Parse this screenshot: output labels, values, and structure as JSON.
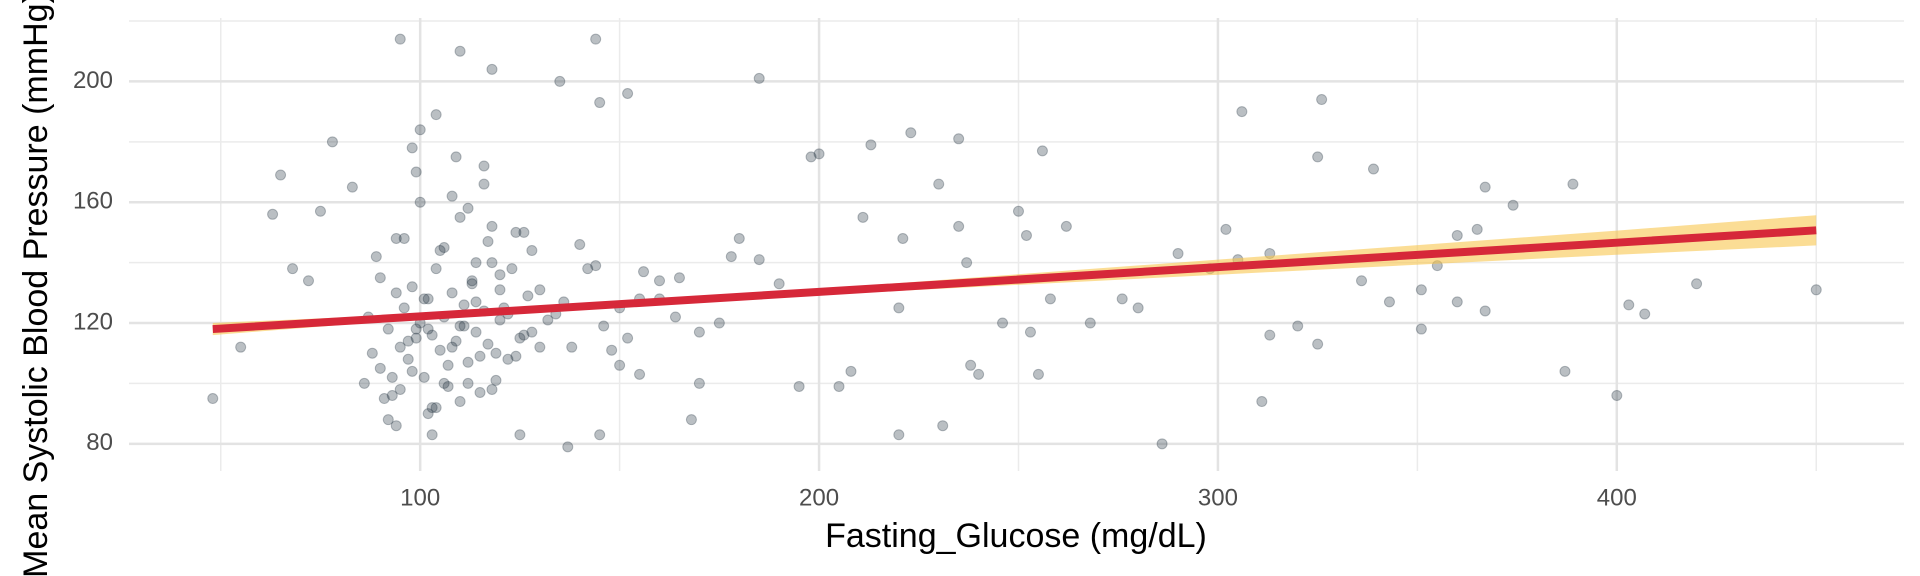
{
  "chart_data": {
    "type": "scatter",
    "x_label": "Fasting_Glucose (mg/dL)",
    "y_label": "Mean Systolic Blood Pressure (mmHg)",
    "xlim": [
      27,
      472
    ],
    "ylim": [
      71,
      221
    ],
    "xticks": [
      100,
      200,
      300,
      400
    ],
    "yticks": [
      80,
      120,
      160,
      200
    ],
    "minor_xticks": [
      50,
      150,
      250,
      350,
      450
    ],
    "minor_yticks": [
      100,
      140,
      180,
      220
    ],
    "grid": true,
    "series": [
      {
        "color": "#1b2a38",
        "opacity": 0.3,
        "x": [
          48,
          55,
          63,
          65,
          68,
          72,
          75,
          78,
          83,
          95,
          110,
          118,
          135,
          144,
          145,
          152,
          185,
          137,
          145,
          103,
          125,
          286,
          311,
          400,
          387,
          403,
          407,
          420,
          450,
          389,
          367,
          374,
          365,
          360,
          355,
          351,
          351,
          367,
          360,
          343,
          339,
          336,
          325,
          326,
          306,
          302,
          305,
          313,
          313,
          320,
          325,
          298,
          290,
          280,
          276,
          268,
          262,
          256,
          250,
          252,
          253,
          255,
          258,
          246,
          240,
          238,
          237,
          235,
          235,
          230,
          231,
          223,
          221,
          220,
          220,
          213,
          211,
          208,
          205,
          200,
          198,
          195,
          190,
          185,
          180,
          175,
          170,
          168,
          165,
          160,
          155,
          150,
          88,
          90,
          92,
          93,
          95,
          96,
          97,
          98,
          99,
          100,
          101,
          102,
          103,
          104,
          105,
          106,
          107,
          108,
          109,
          110,
          111,
          112,
          113,
          114,
          115,
          116,
          117,
          118,
          119,
          120,
          89,
          91,
          94,
          96,
          98,
          100,
          102,
          104,
          106,
          108,
          110,
          112,
          114,
          116,
          118,
          120,
          122,
          124,
          126,
          128,
          87,
          90,
          93,
          97,
          99,
          101,
          103,
          105,
          107,
          109,
          111,
          113,
          115,
          117,
          119,
          121,
          123,
          125,
          127,
          130,
          92,
          95,
          99,
          102,
          106,
          110,
          114,
          118,
          122,
          126,
          130,
          134,
          138,
          142,
          146,
          150,
          155,
          160,
          170,
          178,
          86,
          94,
          100,
          108,
          116,
          124,
          132,
          140,
          148,
          156,
          94,
          98,
          104,
          112,
          120,
          128,
          136,
          144,
          152,
          164
        ],
        "y": [
          95,
          112,
          156,
          169,
          138,
          134,
          157,
          180,
          165,
          214,
          210,
          204,
          200,
          214,
          193,
          196,
          201,
          79,
          83,
          83,
          83,
          80,
          94,
          96,
          104,
          126,
          123,
          133,
          131,
          166,
          165,
          159,
          151,
          149,
          139,
          131,
          118,
          124,
          127,
          127,
          171,
          134,
          175,
          194,
          190,
          151,
          141,
          143,
          116,
          119,
          113,
          138,
          143,
          125,
          128,
          120,
          152,
          177,
          157,
          149,
          117,
          103,
          128,
          120,
          103,
          106,
          140,
          152,
          181,
          166,
          86,
          183,
          148,
          83,
          125,
          179,
          155,
          104,
          99,
          176,
          175,
          99,
          133,
          141,
          148,
          120,
          100,
          88,
          135,
          128,
          103,
          125,
          110,
          105,
          118,
          96,
          112,
          125,
          108,
          132,
          115,
          120,
          102,
          128,
          116,
          138,
          111,
          122,
          99,
          130,
          114,
          119,
          126,
          107,
          134,
          117,
          109,
          124,
          113,
          140,
          101,
          121,
          142,
          95,
          130,
          148,
          104,
          160,
          118,
          92,
          145,
          112,
          155,
          100,
          127,
          166,
          98,
          136,
          123,
          109,
          150,
          117,
          122,
          135,
          102,
          114,
          170,
          128,
          92,
          144,
          106,
          175,
          119,
          133,
          97,
          147,
          110,
          125,
          138,
          115,
          129,
          112,
          88,
          98,
          118,
          90,
          100,
          94,
          140,
          152,
          108,
          116,
          131,
          123,
          112,
          138,
          119,
          106,
          128,
          134,
          117,
          142,
          100,
          148,
          184,
          162,
          172,
          150,
          121,
          146,
          111,
          137,
          86,
          178,
          189,
          158,
          131,
          144,
          127,
          139,
          115,
          122
        ]
      }
    ],
    "trend": {
      "color": "#d62839",
      "band_color": "#f9c74f",
      "x": [
        48,
        100,
        200,
        300,
        400,
        450
      ],
      "y": [
        118,
        122.2,
        130.3,
        138.5,
        146.6,
        150.7
      ],
      "lower": [
        116,
        121.4,
        129.3,
        136,
        142.6,
        145.7
      ],
      "upper": [
        120,
        123,
        131.3,
        141,
        150.6,
        155.7
      ]
    }
  }
}
